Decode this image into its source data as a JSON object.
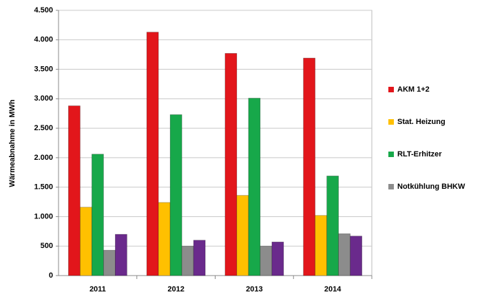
{
  "chart_data": {
    "type": "bar",
    "y_label": "Wärmeabnahme in MWh",
    "categories": [
      "2011",
      "2012",
      "2013",
      "2014"
    ],
    "series": [
      {
        "name": "AKM 1+2",
        "color": "#e2161b",
        "values": [
          2880,
          4130,
          3770,
          3690
        ]
      },
      {
        "name": "Stat. Heizung",
        "color": "#ffc000",
        "values": [
          1160,
          1240,
          1360,
          1020
        ]
      },
      {
        "name": "RLT-Erhitzer",
        "color": "#17a84a",
        "values": [
          2060,
          2730,
          3010,
          1690
        ]
      },
      {
        "name": "Notkühlung BHKW",
        "color": "#8c8c8c",
        "values": [
          430,
          500,
          500,
          710
        ]
      },
      {
        "name": null,
        "color": "#6a2a8c",
        "values": [
          700,
          600,
          570,
          670
        ]
      }
    ],
    "ylim": [
      0,
      4500
    ],
    "yticks": [
      0,
      500,
      {
        "value": 1000,
        "label": "1.000"
      },
      {
        "value": 1500,
        "label": "1.500"
      },
      {
        "value": 2000,
        "label": "2.000"
      },
      {
        "value": 2500,
        "label": "2.500"
      },
      {
        "value": 3000,
        "label": "3.000"
      },
      {
        "value": 3500,
        "label": "3.500"
      },
      {
        "value": 4000,
        "label": "4.000"
      },
      {
        "value": 4500,
        "label": "4.500"
      }
    ],
    "grid": true,
    "legend": "right"
  }
}
